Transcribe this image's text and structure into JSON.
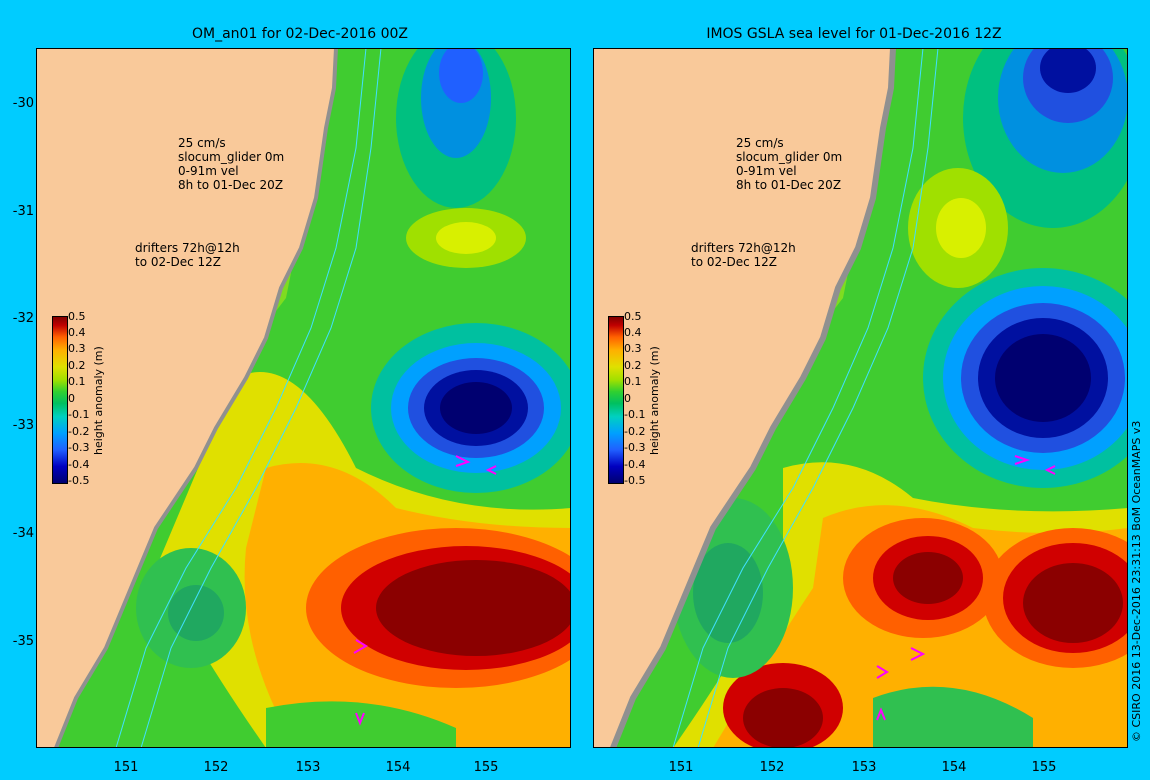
{
  "panels": [
    {
      "title": "OM_an01 for 02-Dec-2016 00Z",
      "legend": {
        "scale": "25 cm/s",
        "glider": "slocum_glider 0m",
        "vel": "0-91m vel",
        "time": "8h to 01-Dec 20Z",
        "drifters1": "drifters 72h@12h",
        "drifters2": "to 02-Dec 12Z"
      }
    },
    {
      "title": "IMOS GSLA sea level  for 01-Dec-2016 12Z",
      "legend": {
        "scale": "25 cm/s",
        "glider": "slocum_glider 0m",
        "vel": "0-91m vel",
        "time": "8h to 01-Dec 20Z",
        "drifters1": "drifters 72h@12h",
        "drifters2": "to 02-Dec 12Z"
      }
    }
  ],
  "lat_ticks": [
    "-30",
    "-31",
    "-32",
    "-33",
    "-34",
    "-35"
  ],
  "lon_ticks": [
    "151",
    "152",
    "153",
    "154",
    "155"
  ],
  "colorbar": {
    "label": "height anomaly (m)",
    "ticks": [
      "0.5",
      "0.4",
      "0.3",
      "0.2",
      "0.1",
      "0",
      "-0.1",
      "-0.2",
      "-0.3",
      "-0.4",
      "-0.5"
    ]
  },
  "credit": "© CSIRO 2016  13-Dec-2016 23:31:13 BoM OceanMAPS v3",
  "colors": {
    "land": "#f9c99a",
    "background": "#00ccff",
    "high": "#8b0000",
    "low": "#000070"
  }
}
